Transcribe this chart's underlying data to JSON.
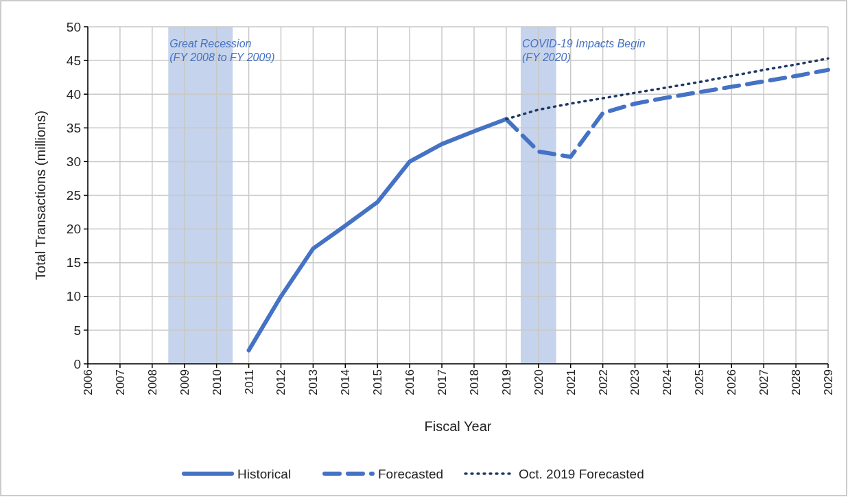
{
  "chart_data": {
    "type": "line",
    "xlabel": "Fiscal Year",
    "ylabel": "Total Transactions (millions)",
    "xlim": [
      2006,
      2029
    ],
    "xticks": [
      2006,
      2007,
      2008,
      2009,
      2010,
      2011,
      2012,
      2013,
      2014,
      2015,
      2016,
      2017,
      2018,
      2019,
      2020,
      2021,
      2022,
      2023,
      2024,
      2025,
      2026,
      2027,
      2028,
      2029
    ],
    "ylim": [
      0,
      50
    ],
    "yticks": [
      0,
      5,
      10,
      15,
      20,
      25,
      30,
      35,
      40,
      45,
      50
    ],
    "grid": true,
    "legend": "bottom",
    "marker": "none",
    "bands": [
      {
        "axis": "x",
        "from": 2008.5,
        "to": 2010.5,
        "label": "Great Recession\n(FY 2008 to FY 2009)",
        "color": "#c5d3ec"
      },
      {
        "axis": "x",
        "from": 2019.45,
        "to": 2020.55,
        "label": "COVID-19 Impacts Begin\n(FY 2020)",
        "color": "#c5d3ec"
      }
    ],
    "series": [
      {
        "name": "Historical",
        "color": "#4472c4",
        "line_style": "solid",
        "x": [
          2011,
          2012,
          2013,
          2014,
          2015,
          2016,
          2017,
          2018,
          2019
        ],
        "values": [
          2,
          10,
          17.1,
          20.5,
          24,
          30,
          32.6,
          34.5,
          36.3
        ]
      },
      {
        "name": "Forecasted",
        "color": "#4472c4",
        "line_style": "dashed",
        "x": [
          2019,
          2020,
          2021,
          2022,
          2023,
          2024,
          2025,
          2026,
          2027,
          2028,
          2029
        ],
        "values": [
          36.3,
          31.5,
          30.7,
          37.2,
          38.6,
          39.5,
          40.3,
          41.1,
          41.9,
          42.7,
          43.6
        ]
      },
      {
        "name": "Oct. 2019 Forecasted",
        "color": "#203864",
        "line_style": "dotted",
        "x": [
          2019,
          2020,
          2021,
          2022,
          2023,
          2024,
          2025,
          2026,
          2027,
          2028,
          2029
        ],
        "values": [
          36.3,
          37.7,
          38.6,
          39.4,
          40.2,
          41.0,
          41.8,
          42.7,
          43.6,
          44.4,
          45.3
        ]
      }
    ]
  }
}
